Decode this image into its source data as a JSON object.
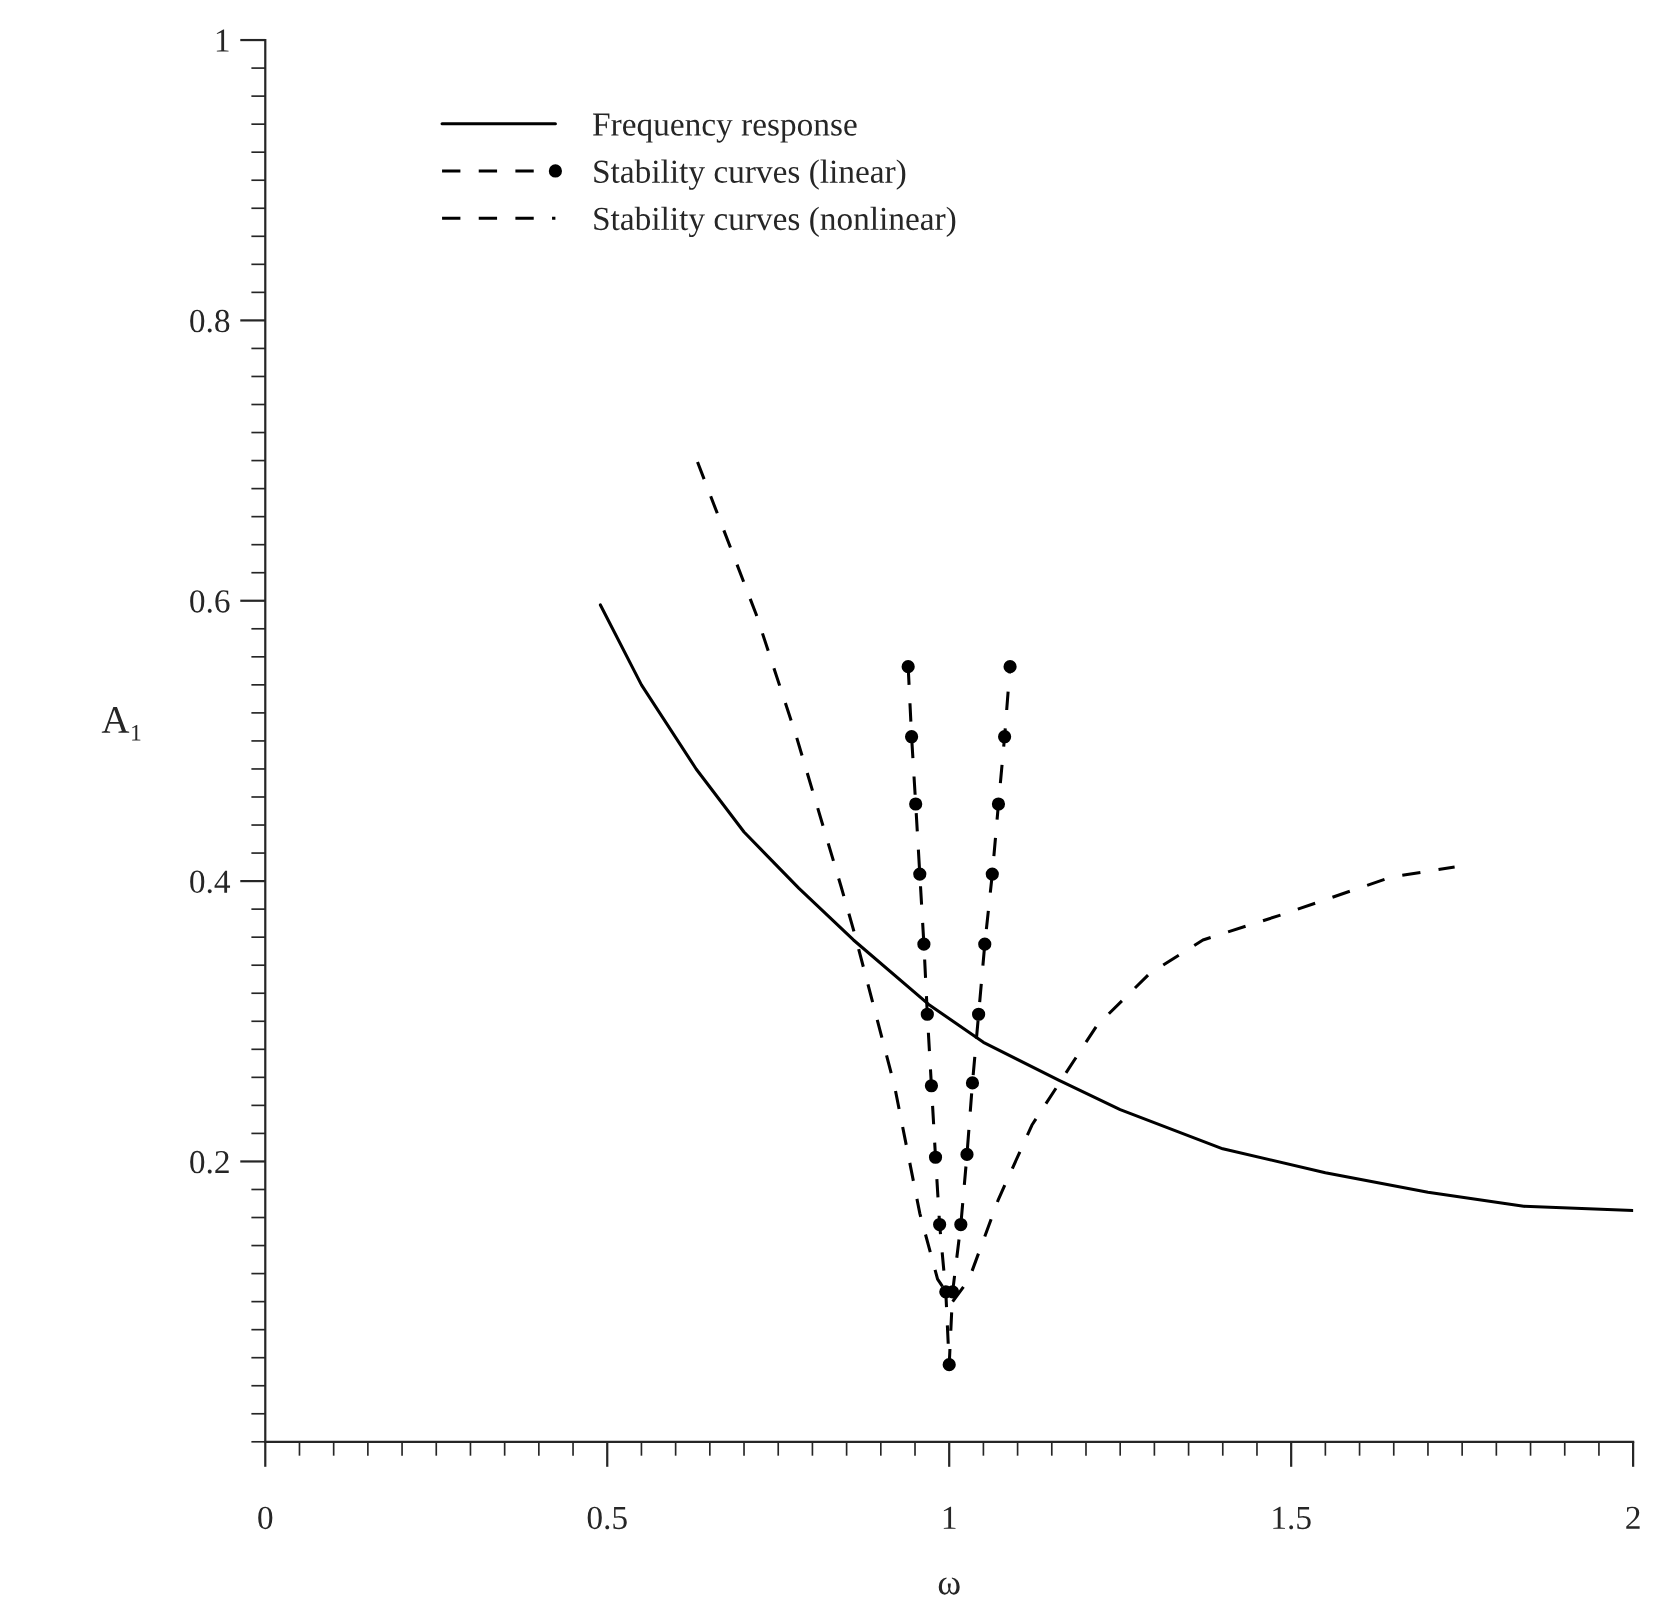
{
  "chart_data": {
    "type": "line",
    "xlabel": "ω",
    "ylabel": "A₁",
    "xlim": [
      0,
      2
    ],
    "ylim": [
      0,
      1
    ],
    "xticks": [
      0,
      {
        "value": 0.05,
        "label": null
      },
      {
        "value": 0.1,
        "label": null
      },
      {
        "value": 0.15,
        "label": null
      },
      {
        "value": 0.2,
        "label": null
      },
      {
        "value": 0.25,
        "label": null
      },
      {
        "value": 0.3,
        "label": null
      },
      {
        "value": 0.35,
        "label": null
      },
      {
        "value": 0.4,
        "label": null
      },
      {
        "value": 0.45,
        "label": null
      },
      0.5,
      {
        "value": 0.55,
        "label": null
      },
      {
        "value": 0.6,
        "label": null
      },
      {
        "value": 0.65,
        "label": null
      },
      {
        "value": 0.7,
        "label": null
      },
      {
        "value": 0.75,
        "label": null
      },
      {
        "value": 0.8,
        "label": null
      },
      {
        "value": 0.85,
        "label": null
      },
      {
        "value": 0.9,
        "label": null
      },
      {
        "value": 0.95,
        "label": null
      },
      1,
      {
        "value": 1.05,
        "label": null
      },
      {
        "value": 1.1,
        "label": null
      },
      {
        "value": 1.15,
        "label": null
      },
      {
        "value": 1.2,
        "label": null
      },
      {
        "value": 1.25,
        "label": null
      },
      {
        "value": 1.3,
        "label": null
      },
      {
        "value": 1.35,
        "label": null
      },
      {
        "value": 1.4,
        "label": null
      },
      {
        "value": 1.45,
        "label": null
      },
      1.5,
      {
        "value": 1.55,
        "label": null
      },
      {
        "value": 1.6,
        "label": null
      },
      {
        "value": 1.65,
        "label": null
      },
      {
        "value": 1.7,
        "label": null
      },
      {
        "value": 1.75,
        "label": null
      },
      {
        "value": 1.8,
        "label": null
      },
      {
        "value": 1.85,
        "label": null
      },
      {
        "value": 1.9,
        "label": null
      },
      {
        "value": 1.95,
        "label": null
      },
      2
    ],
    "yticks": [
      {
        "value": 0,
        "label": null
      },
      {
        "value": 0.02,
        "label": null
      },
      {
        "value": 0.04,
        "label": null
      },
      {
        "value": 0.06,
        "label": null
      },
      {
        "value": 0.08,
        "label": null
      },
      {
        "value": 0.1,
        "label": null
      },
      {
        "value": 0.12,
        "label": null
      },
      {
        "value": 0.14,
        "label": null
      },
      {
        "value": 0.16,
        "label": null
      },
      {
        "value": 0.18,
        "label": null
      },
      0.2,
      {
        "value": 0.22,
        "label": null
      },
      {
        "value": 0.24,
        "label": null
      },
      {
        "value": 0.26,
        "label": null
      },
      {
        "value": 0.28,
        "label": null
      },
      {
        "value": 0.3,
        "label": null
      },
      {
        "value": 0.32,
        "label": null
      },
      {
        "value": 0.34,
        "label": null
      },
      {
        "value": 0.36,
        "label": null
      },
      {
        "value": 0.38,
        "label": null
      },
      0.4,
      {
        "value": 0.42,
        "label": null
      },
      {
        "value": 0.44,
        "label": null
      },
      {
        "value": 0.46,
        "label": null
      },
      {
        "value": 0.48,
        "label": null
      },
      {
        "value": 0.5,
        "label": null
      },
      {
        "value": 0.52,
        "label": null
      },
      {
        "value": 0.54,
        "label": null
      },
      {
        "value": 0.56,
        "label": null
      },
      {
        "value": 0.58,
        "label": null
      },
      0.6,
      {
        "value": 0.62,
        "label": null
      },
      {
        "value": 0.64,
        "label": null
      },
      {
        "value": 0.66,
        "label": null
      },
      {
        "value": 0.68,
        "label": null
      },
      {
        "value": 0.7,
        "label": null
      },
      {
        "value": 0.72,
        "label": null
      },
      {
        "value": 0.74,
        "label": null
      },
      {
        "value": 0.76,
        "label": null
      },
      {
        "value": 0.78,
        "label": null
      },
      0.8,
      {
        "value": 0.82,
        "label": null
      },
      {
        "value": 0.84,
        "label": null
      },
      {
        "value": 0.86,
        "label": null
      },
      {
        "value": 0.88,
        "label": null
      },
      {
        "value": 0.9,
        "label": null
      },
      {
        "value": 0.92,
        "label": null
      },
      {
        "value": 0.94,
        "label": null
      },
      {
        "value": 0.96,
        "label": null
      },
      {
        "value": 0.98,
        "label": null
      },
      1
    ],
    "grid": false,
    "legend": "top left",
    "series": [
      {
        "name": "Frequency response",
        "color": "#000000",
        "line_style": "solid",
        "marker": "none",
        "x": [
          0.49,
          0.55,
          0.63,
          0.7,
          0.78,
          0.86,
          0.97,
          1.05,
          1.16,
          1.25,
          1.4,
          1.55,
          1.7,
          1.84,
          2.0
        ],
        "values": [
          0.597,
          0.54,
          0.48,
          0.435,
          0.395,
          0.358,
          0.312,
          0.285,
          0.258,
          0.237,
          0.209,
          0.192,
          0.178,
          0.168,
          0.165
        ]
      },
      {
        "name": "Stability curves (linear)",
        "color": "#000000",
        "line_style": "dashed",
        "marker": "circle",
        "x": [
          0.94,
          0.945,
          0.951,
          0.957,
          0.963,
          0.968,
          0.974,
          0.98,
          0.986,
          0.995,
          1.0,
          1.005,
          1.017,
          1.026,
          1.034,
          1.043,
          1.052,
          1.063,
          1.072,
          1.081,
          1.089
        ],
        "values": [
          0.553,
          0.503,
          0.455,
          0.405,
          0.355,
          0.305,
          0.254,
          0.203,
          0.155,
          0.107,
          0.055,
          0.107,
          0.155,
          0.205,
          0.256,
          0.305,
          0.355,
          0.405,
          0.455,
          0.503,
          0.553
        ]
      },
      {
        "name": "Stability curves (nonlinear)",
        "color": "#000000",
        "line_style": "dashed",
        "marker": "none",
        "x": [
          0.632,
          0.718,
          0.776,
          0.842,
          0.862,
          0.92,
          0.957,
          0.983,
          1.005,
          1.029,
          1.072,
          1.121,
          1.216,
          1.293,
          1.371,
          1.486,
          1.647,
          1.739
        ],
        "values": [
          0.699,
          0.59,
          0.504,
          0.396,
          0.362,
          0.254,
          0.163,
          0.116,
          0.1,
          0.116,
          0.173,
          0.226,
          0.297,
          0.334,
          0.358,
          0.376,
          0.403,
          0.41
        ]
      }
    ]
  }
}
